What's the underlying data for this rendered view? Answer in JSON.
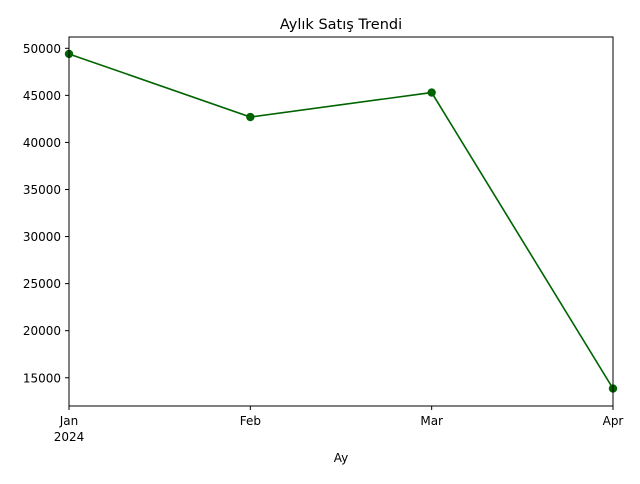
{
  "chart_data": {
    "type": "line",
    "title": "Aylık Satış Trendi",
    "xlabel": "Ay",
    "ylabel": "",
    "categories": [
      "Jan",
      "Feb",
      "Mar",
      "Apr"
    ],
    "x_year_label": "2024",
    "ylim": [
      12000,
      51200
    ],
    "yticks": [
      15000,
      20000,
      25000,
      30000,
      35000,
      40000,
      45000,
      50000
    ],
    "series": [
      {
        "values": [
          49400,
          42700,
          45300,
          13850
        ],
        "color": "#006400"
      }
    ],
    "grid": false,
    "legend": "none"
  }
}
